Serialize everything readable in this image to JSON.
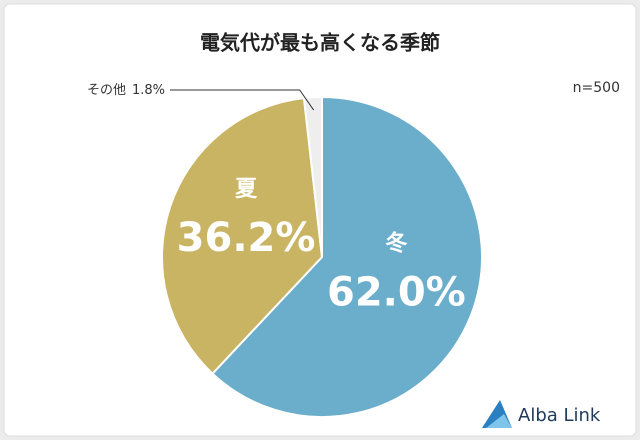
{
  "chart_data": {
    "type": "pie",
    "title": "電気代が最も高くなる季節",
    "annotation": "n=500",
    "categories": [
      "冬",
      "夏",
      "その他"
    ],
    "values": [
      62.0,
      36.2,
      1.8
    ],
    "value_labels": [
      "62.0%",
      "36.2%",
      "1.8%"
    ],
    "colors": [
      "#6aaecb",
      "#c9b463",
      "#eeeeee"
    ],
    "start_angle": 0,
    "direction": "clockwise"
  },
  "brand": "Alba Link"
}
